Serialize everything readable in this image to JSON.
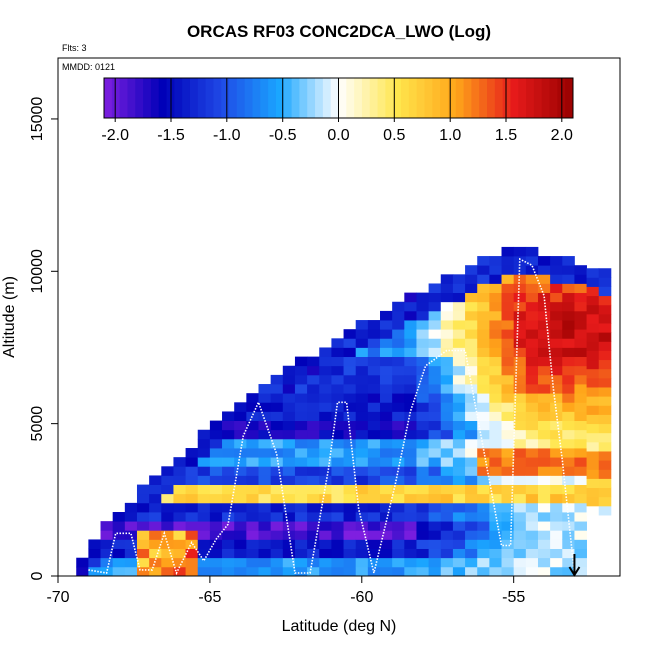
{
  "chart_data": {
    "type": "heatmap",
    "title": "ORCAS RF03 CONC2DCA_LWO (Log)",
    "flights_label": "Flts: 3",
    "date_label": "MMDD: 0121",
    "xlabel": "Latitude (deg N)",
    "ylabel": "Altitude (m)",
    "xlim": [
      -70,
      -51.5
    ],
    "ylim": [
      0,
      17000
    ],
    "x_ticks": [
      -70,
      -65,
      -60,
      -55
    ],
    "x_tick_labels": [
      "-70",
      "-65",
      "-60",
      "-55"
    ],
    "y_ticks": [
      0,
      5000,
      10000,
      15000
    ],
    "y_tick_labels": [
      "0",
      "5000",
      "10000",
      "15000"
    ],
    "grid": false,
    "colorbar": {
      "position": "top-inside",
      "range": [
        -2.1,
        2.1
      ],
      "ticks": [
        -2.0,
        -1.5,
        -1.0,
        -0.5,
        0.0,
        0.5,
        1.0,
        1.5,
        2.0
      ],
      "tick_labels": [
        "-2.0",
        "-1.5",
        "-1.0",
        "-0.5",
        "0.0",
        "0.5",
        "1.0",
        "1.5",
        "2.0"
      ],
      "colors": [
        "#7f1fe0",
        "#0000b8",
        "#1f49e6",
        "#1aa6ff",
        "#ffffff",
        "#ffe64d",
        "#ffa61a",
        "#e61a1a",
        "#990000"
      ]
    },
    "bin_size": {
      "lat_deg": 0.4,
      "alt_m": 300
    },
    "ceiling_m": [
      [
        -69.2,
        500
      ],
      [
        -68.0,
        2000
      ],
      [
        -67.0,
        2900
      ],
      [
        -66.0,
        3800
      ],
      [
        -65.0,
        4700
      ],
      [
        -64.0,
        5500
      ],
      [
        -63.0,
        6200
      ],
      [
        -62.0,
        6900
      ],
      [
        -61.0,
        7500
      ],
      [
        -60.0,
        8100
      ],
      [
        -59.0,
        8700
      ],
      [
        -58.0,
        9200
      ],
      [
        -57.0,
        9700
      ],
      [
        -56.0,
        10200
      ],
      [
        -55.0,
        10700
      ],
      [
        -54.0,
        10500
      ],
      [
        -53.0,
        10200
      ],
      [
        -52.0,
        10000
      ]
    ],
    "band_structure_log": [
      {
        "alt_m": [
          0,
          600
        ],
        "value": -0.6
      },
      {
        "alt_m": [
          600,
          1200
        ],
        "value": -1.4
      },
      {
        "alt_m": [
          1200,
          1800
        ],
        "value": -1.9
      },
      {
        "alt_m": [
          1800,
          2500
        ],
        "value": -1.3
      },
      {
        "alt_m": [
          2500,
          3000
        ],
        "value": 0.6
      },
      {
        "alt_m": [
          3000,
          3600
        ],
        "value": -1.1
      },
      {
        "alt_m": [
          3600,
          4400
        ],
        "value": -0.6
      },
      {
        "alt_m": [
          4400,
          5000
        ],
        "value": -1.6
      },
      {
        "alt_m": [
          5000,
          6000
        ],
        "value": -1.4
      },
      {
        "alt_m": [
          6000,
          7200
        ],
        "value": -1.2
      },
      {
        "alt_m": [
          7200,
          9000
        ],
        "value": -0.7
      },
      {
        "alt_m": [
          9000,
          11000
        ],
        "value": -0.2
      }
    ],
    "southern_hotspot": {
      "lat": [
        -67.5,
        -65.5
      ],
      "alt_m": [
        0,
        1500
      ],
      "peak": 1.4
    },
    "northern_region": {
      "lat_from": -58.5,
      "peak": 1.7,
      "peak_alt_m": 8000
    },
    "flight_track": [
      [
        -69.0,
        200
      ],
      [
        -68.4,
        100
      ],
      [
        -68.1,
        1400
      ],
      [
        -67.6,
        1400
      ],
      [
        -67.3,
        200
      ],
      [
        -66.9,
        200
      ],
      [
        -66.5,
        1400
      ],
      [
        -66.1,
        100
      ],
      [
        -65.6,
        1100
      ],
      [
        -65.2,
        500
      ],
      [
        -64.8,
        1200
      ],
      [
        -64.4,
        1700
      ],
      [
        -63.9,
        4600
      ],
      [
        -63.4,
        5700
      ],
      [
        -62.8,
        4000
      ],
      [
        -62.2,
        100
      ],
      [
        -61.7,
        100
      ],
      [
        -61.1,
        3500
      ],
      [
        -60.8,
        5700
      ],
      [
        -60.5,
        5700
      ],
      [
        -60.1,
        2200
      ],
      [
        -59.6,
        100
      ],
      [
        -58.9,
        3000
      ],
      [
        -58.4,
        5400
      ],
      [
        -57.9,
        6900
      ],
      [
        -57.2,
        7400
      ],
      [
        -56.6,
        7400
      ],
      [
        -56.0,
        4200
      ],
      [
        -55.4,
        1000
      ],
      [
        -55.1,
        1000
      ],
      [
        -54.8,
        10400
      ],
      [
        -54.4,
        10200
      ],
      [
        -54.0,
        9200
      ],
      [
        -53.7,
        6200
      ],
      [
        -53.4,
        3800
      ],
      [
        -53.0,
        100
      ]
    ],
    "arrow_lat": -53.0
  }
}
